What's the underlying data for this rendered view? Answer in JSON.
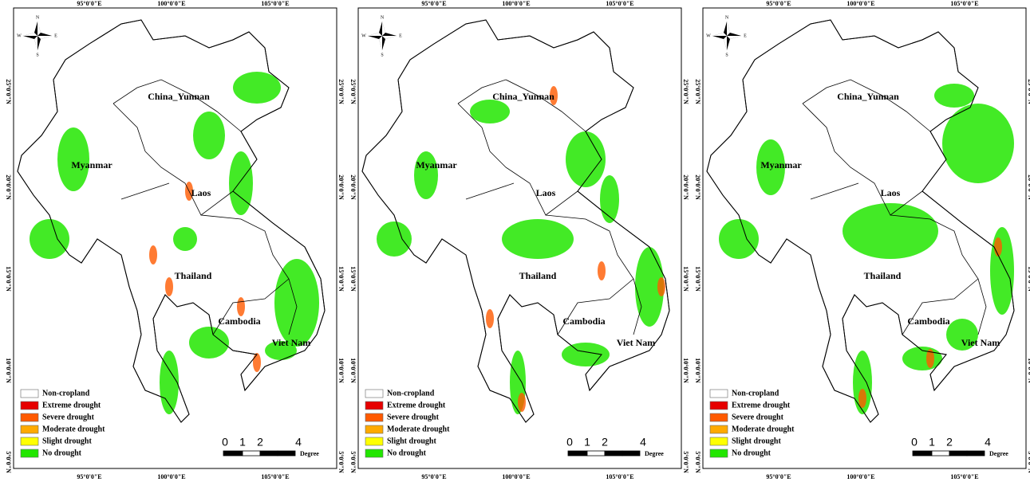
{
  "panels": [
    {
      "top_labels": [
        "95°0'0\"E",
        "100°0'0\"E",
        "105°0'0\"E"
      ],
      "side_labels": [
        "25°0'0\"N",
        "20°0'0\"N",
        "15°0'0\"N",
        "10°0'0\"N",
        "5°0'0\"N"
      ],
      "compass": [
        "N",
        "S",
        "W",
        "E"
      ],
      "countries": [
        "China_Yunnan",
        "Myanmar",
        "Laos",
        "Thailand",
        "Cambodia",
        "Viet Nam"
      ],
      "legend": [
        {
          "label": "Non-cropland",
          "color": "#ffffff"
        },
        {
          "label": "Extreme drought",
          "color": "#e60000"
        },
        {
          "label": "Severe drought",
          "color": "#ff5a00"
        },
        {
          "label": "Moderate drought",
          "color": "#ffaa00"
        },
        {
          "label": "Slight drought",
          "color": "#ffff00"
        },
        {
          "label": "No drought",
          "color": "#22e600"
        }
      ],
      "scale": [
        "0",
        "1",
        "2",
        "4"
      ],
      "scale_unit": "Degree"
    },
    {
      "top_labels": [
        "95°0'0\"E",
        "100°0'0\"E",
        "105°0'0\"E"
      ],
      "side_labels": [
        "25°0'0\"N",
        "20°0'0\"N",
        "15°0'0\"N",
        "10°0'0\"N",
        "5°0'0\"N"
      ],
      "compass": [
        "N",
        "S",
        "W",
        "E"
      ],
      "countries": [
        "China_Yunnan",
        "Myanmar",
        "Laos",
        "Thailand",
        "Cambodia",
        "Viet Nam"
      ],
      "legend": [
        {
          "label": "Non-cropland",
          "color": "#ffffff"
        },
        {
          "label": "Extreme drought",
          "color": "#e60000"
        },
        {
          "label": "Severe drought",
          "color": "#ff5a00"
        },
        {
          "label": "Moderate drought",
          "color": "#ffaa00"
        },
        {
          "label": "Slight drought",
          "color": "#ffff00"
        },
        {
          "label": "No drought",
          "color": "#22e600"
        }
      ],
      "scale": [
        "0",
        "1",
        "2",
        "4"
      ],
      "scale_unit": "Degree"
    },
    {
      "top_labels": [
        "95°0'0\"E",
        "100°0'0\"E",
        "105°0'0\"E"
      ],
      "side_labels": [
        "25°0'0\"N",
        "20°0'0\"N",
        "15°0'0\"N",
        "10°0'0\"N",
        "5°0'0\"N"
      ],
      "compass": [
        "N",
        "S",
        "W",
        "E"
      ],
      "countries": [
        "China_Yunnan",
        "Myanmar",
        "Laos",
        "Thailand",
        "Cambodia",
        "Viet Nam"
      ],
      "legend": [
        {
          "label": "Non-cropland",
          "color": "#ffffff"
        },
        {
          "label": "Extreme drought",
          "color": "#e60000"
        },
        {
          "label": "Severe drought",
          "color": "#ff5a00"
        },
        {
          "label": "Moderate drought",
          "color": "#ffaa00"
        },
        {
          "label": "Slight drought",
          "color": "#ffff00"
        },
        {
          "label": "No drought",
          "color": "#22e600"
        }
      ],
      "scale": [
        "0",
        "1",
        "2",
        "4"
      ],
      "scale_unit": "Degree"
    }
  ]
}
